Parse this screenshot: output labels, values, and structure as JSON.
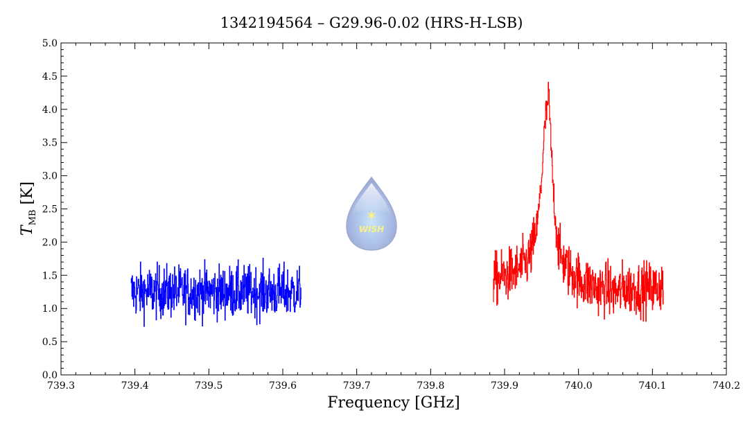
{
  "chart_data": {
    "type": "line",
    "title": "1342194564 – G29.96-0.02 (HRS-H-LSB)",
    "xlabel": "Frequency [GHz]",
    "ylabel_main": "T",
    "ylabel_sub": "MB",
    "ylabel_unit": "[K]",
    "xlim": [
      739.3,
      740.2
    ],
    "ylim": [
      0.0,
      5.0
    ],
    "x_ticks": [
      "739.3",
      "739.4",
      "739.5",
      "739.6",
      "739.7",
      "739.8",
      "739.9",
      "740.0",
      "740.1",
      "740.2"
    ],
    "y_ticks": [
      "0.0",
      "0.5",
      "1.0",
      "1.5",
      "2.0",
      "2.5",
      "3.0",
      "3.5",
      "4.0",
      "4.5",
      "5.0"
    ],
    "grid": false,
    "logo_text": "WISH",
    "series": [
      {
        "name": "blue-sideband",
        "color": "#0000ff",
        "x_start": 739.395,
        "x_step": 0.005,
        "values": [
          1.25,
          1.25,
          1.25,
          1.25,
          1.25,
          1.25,
          1.25,
          1.25,
          1.25,
          1.25,
          1.25,
          1.25,
          1.25,
          1.25,
          1.25,
          1.25,
          1.25,
          1.25,
          1.25,
          1.25,
          1.25,
          1.25,
          1.25,
          1.25,
          1.25,
          1.25,
          1.25,
          1.25,
          1.25,
          1.25,
          1.25,
          1.25,
          1.25,
          1.25,
          1.25,
          1.25,
          1.25,
          1.25,
          1.25,
          1.25,
          1.25,
          1.25,
          1.25,
          1.25,
          1.25,
          1.25,
          1.25
        ],
        "noise_rms": 0.2
      },
      {
        "name": "red-sideband",
        "color": "#ff0000",
        "x_start": 739.885,
        "x_step": 0.005,
        "values": [
          1.45,
          1.45,
          1.45,
          1.5,
          1.5,
          1.55,
          1.55,
          1.6,
          1.65,
          1.7,
          1.8,
          2.0,
          2.3,
          2.9,
          3.8,
          4.2,
          3.0,
          2.2,
          1.8,
          1.7,
          1.6,
          1.55,
          1.5,
          1.45,
          1.4,
          1.4,
          1.35,
          1.35,
          1.3,
          1.3,
          1.3,
          1.3,
          1.25,
          1.25,
          1.25,
          1.3,
          1.3,
          1.3,
          1.3,
          1.3,
          1.3,
          1.3,
          1.3,
          1.3,
          1.3,
          1.35,
          1.35
        ],
        "noise_rms": 0.2
      }
    ]
  }
}
